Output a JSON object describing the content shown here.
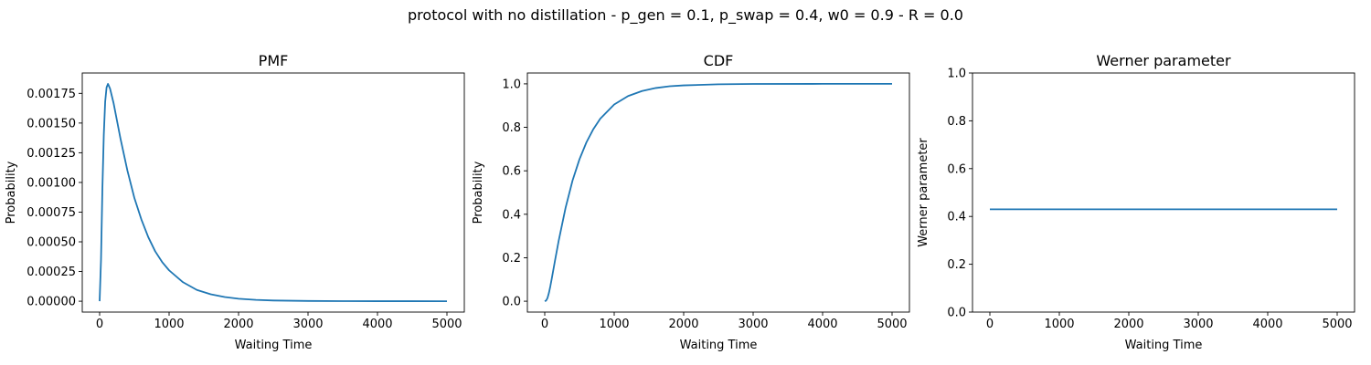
{
  "figure": {
    "suptitle": "protocol with no distillation - p_gen = 0.1, p_swap = 0.4, w0 = 0.9 - R = 0.0"
  },
  "chart_data": [
    {
      "type": "line",
      "title": "PMF",
      "xlabel": "Waiting Time",
      "ylabel": "Probability",
      "xlim": [
        -250,
        5250
      ],
      "ylim": [
        -9.15e-05,
        0.0019215
      ],
      "xticks": [
        0,
        1000,
        2000,
        3000,
        4000,
        5000
      ],
      "xtick_labels": [
        "0",
        "1000",
        "2000",
        "3000",
        "4000",
        "5000"
      ],
      "yticks": [
        0,
        0.00025,
        0.0005,
        0.00075,
        0.001,
        0.00125,
        0.0015,
        0.00175
      ],
      "ytick_labels": [
        "0.00000",
        "0.00025",
        "0.00050",
        "0.00075",
        "0.00100",
        "0.00125",
        "0.00150",
        "0.00175"
      ],
      "series": [
        {
          "color": "#1f77b4",
          "x": [
            0,
            20,
            40,
            60,
            80,
            100,
            120,
            150,
            200,
            250,
            300,
            400,
            500,
            600,
            700,
            800,
            900,
            1000,
            1200,
            1400,
            1600,
            1800,
            2000,
            2250,
            2500,
            3000,
            3500,
            4000,
            4500,
            5000
          ],
          "y": [
            0,
            0.00035,
            0.00095,
            0.0014,
            0.00168,
            0.0018,
            0.00183,
            0.00179,
            0.00167,
            0.00152,
            0.00137,
            0.0011,
            0.00087,
            0.00069,
            0.00054,
            0.00042,
            0.00033,
            0.00026,
            0.00016,
            9.5e-05,
            5.8e-05,
            3.5e-05,
            2.1e-05,
            1.1e-05,
            6e-06,
            2e-06,
            6e-07,
            2e-07,
            1e-07,
            0.0
          ]
        }
      ]
    },
    {
      "type": "line",
      "title": "CDF",
      "xlabel": "Waiting Time",
      "ylabel": "Probability",
      "xlim": [
        -250,
        5250
      ],
      "ylim": [
        -0.05,
        1.05
      ],
      "xticks": [
        0,
        1000,
        2000,
        3000,
        4000,
        5000
      ],
      "xtick_labels": [
        "0",
        "1000",
        "2000",
        "3000",
        "4000",
        "5000"
      ],
      "yticks": [
        0,
        0.2,
        0.4,
        0.6,
        0.8,
        1.0
      ],
      "ytick_labels": [
        "0.0",
        "0.2",
        "0.4",
        "0.6",
        "0.8",
        "1.0"
      ],
      "series": [
        {
          "color": "#1f77b4",
          "x": [
            0,
            20,
            40,
            60,
            80,
            100,
            150,
            200,
            300,
            400,
            500,
            600,
            700,
            800,
            1000,
            1200,
            1400,
            1600,
            1800,
            2000,
            2500,
            3000,
            4000,
            5000
          ],
          "y": [
            0,
            0.003,
            0.015,
            0.038,
            0.068,
            0.102,
            0.191,
            0.277,
            0.43,
            0.555,
            0.653,
            0.731,
            0.792,
            0.84,
            0.905,
            0.944,
            0.967,
            0.981,
            0.989,
            0.993,
            0.998,
            0.9995,
            1.0,
            1.0
          ]
        }
      ]
    },
    {
      "type": "line",
      "title": "Werner parameter",
      "xlabel": "Waiting Time",
      "ylabel": "Werner parameter",
      "xlim": [
        -250,
        5250
      ],
      "ylim": [
        0,
        1
      ],
      "xticks": [
        0,
        1000,
        2000,
        3000,
        4000,
        5000
      ],
      "xtick_labels": [
        "0",
        "1000",
        "2000",
        "3000",
        "4000",
        "5000"
      ],
      "yticks": [
        0,
        0.2,
        0.4,
        0.6,
        0.8,
        1.0
      ],
      "ytick_labels": [
        "0.0",
        "0.2",
        "0.4",
        "0.6",
        "0.8",
        "1.0"
      ],
      "series": [
        {
          "color": "#1f77b4",
          "x": [
            0,
            5000
          ],
          "y": [
            0.43,
            0.43
          ]
        }
      ]
    }
  ]
}
